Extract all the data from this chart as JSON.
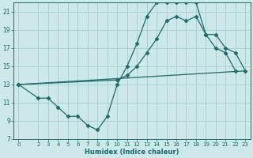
{
  "xlabel": "Humidex (Indice chaleur)",
  "bg_color": "#cce8e8",
  "line_color": "#1a6b6b",
  "grid_color": "#aacccc",
  "xlim": [
    -0.5,
    23.5
  ],
  "ylim": [
    7,
    22
  ],
  "xticks": [
    0,
    2,
    3,
    4,
    5,
    6,
    7,
    8,
    9,
    10,
    11,
    12,
    13,
    14,
    15,
    16,
    17,
    18,
    19,
    20,
    21,
    22,
    23
  ],
  "yticks": [
    7,
    9,
    11,
    13,
    15,
    17,
    19,
    21
  ],
  "lines": [
    {
      "x": [
        0,
        2,
        3,
        4,
        5,
        6,
        7,
        8,
        9,
        10,
        11,
        12,
        13,
        14,
        15,
        16,
        17,
        18,
        19,
        20,
        21,
        22
      ],
      "y": [
        13,
        11.5,
        11.5,
        10.5,
        9.5,
        9.5,
        8.5,
        8.0,
        9.5,
        13.0,
        15.0,
        17.5,
        20.5,
        22.0,
        22.0,
        22.0,
        22.0,
        22.0,
        18.5,
        17.0,
        16.5,
        14.5
      ],
      "marker": "D",
      "markersize": 2.5
    },
    {
      "x": [
        0,
        23
      ],
      "y": [
        13,
        14.5
      ],
      "marker": null,
      "markersize": 0
    },
    {
      "x": [
        0,
        10,
        11,
        12,
        13,
        14,
        15,
        16,
        17,
        18,
        19,
        20,
        21,
        22,
        23
      ],
      "y": [
        13,
        13.5,
        14.0,
        15.0,
        16.5,
        18.0,
        20.0,
        20.5,
        20.0,
        20.5,
        18.5,
        18.5,
        17.0,
        16.5,
        14.5
      ],
      "marker": "D",
      "markersize": 2.5
    }
  ]
}
